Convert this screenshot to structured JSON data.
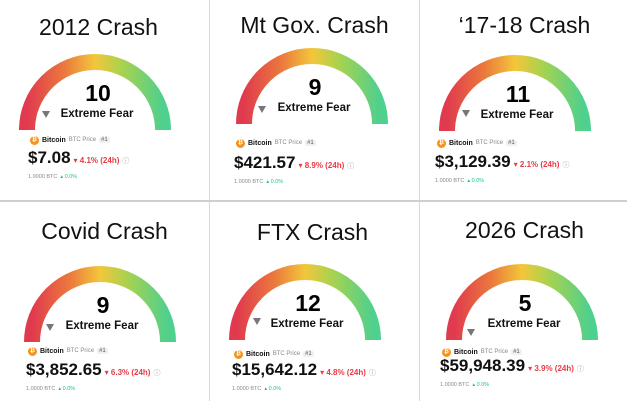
{
  "colors": {
    "gauge_stops": [
      "#e03a4e",
      "#eb7a3c",
      "#f3c63b",
      "#a8d24f",
      "#4ed08e"
    ],
    "pointer": "#777777",
    "negative": "#ea3943",
    "positive": "#16c784",
    "bitcoin": "#f7931a"
  },
  "panels": [
    {
      "title": "2012 Crash",
      "gauge_value": 10,
      "gauge_max": 100,
      "gauge_label": "Extreme Fear",
      "coin": {
        "name": "Bitcoin",
        "subtitle": "BTC Price",
        "rank": "#1"
      },
      "price": "$7.08",
      "change": "4.1% (24h)",
      "unit": "1.0000 BTC",
      "unit_change": "0.0%"
    },
    {
      "title": "Mt Gox. Crash",
      "gauge_value": 9,
      "gauge_max": 100,
      "gauge_label": "Extreme Fear",
      "coin": {
        "name": "Bitcoin",
        "subtitle": "BTC Price",
        "rank": "#1"
      },
      "price": "$421.57",
      "change": "8.9% (24h)",
      "unit": "1.0000 BTC",
      "unit_change": "0.0%"
    },
    {
      "title": "‘17-18 Crash",
      "gauge_value": 11,
      "gauge_max": 100,
      "gauge_label": "Extreme Fear",
      "coin": {
        "name": "Bitcoin",
        "subtitle": "BTC Price",
        "rank": "#1"
      },
      "price": "$3,129.39",
      "change": "2.1% (24h)",
      "unit": "1.0000 BTC",
      "unit_change": "0.0%"
    },
    {
      "title": "Covid Crash",
      "gauge_value": 9,
      "gauge_max": 100,
      "gauge_label": "Extreme Fear",
      "coin": {
        "name": "Bitcoin",
        "subtitle": "BTC Price",
        "rank": "#1"
      },
      "price": "$3,852.65",
      "change": "6.3% (24h)",
      "unit": "1.0000 BTC",
      "unit_change": "0.0%"
    },
    {
      "title": "FTX Crash",
      "gauge_value": 12,
      "gauge_max": 100,
      "gauge_label": "Extreme Fear",
      "coin": {
        "name": "Bitcoin",
        "subtitle": "BTC Price",
        "rank": "#1"
      },
      "price": "$15,642.12",
      "change": "4.8% (24h)",
      "unit": "1.0000 BTC",
      "unit_change": "0.0%"
    },
    {
      "title": "2026 Crash",
      "gauge_value": 5,
      "gauge_max": 100,
      "gauge_label": "Extreme Fear",
      "coin": {
        "name": "Bitcoin",
        "subtitle": "BTC Price",
        "rank": "#1"
      },
      "price": "$59,948.39",
      "change": "3.9% (24h)",
      "unit": "1.0000 BTC",
      "unit_change": "0.0%"
    }
  ]
}
